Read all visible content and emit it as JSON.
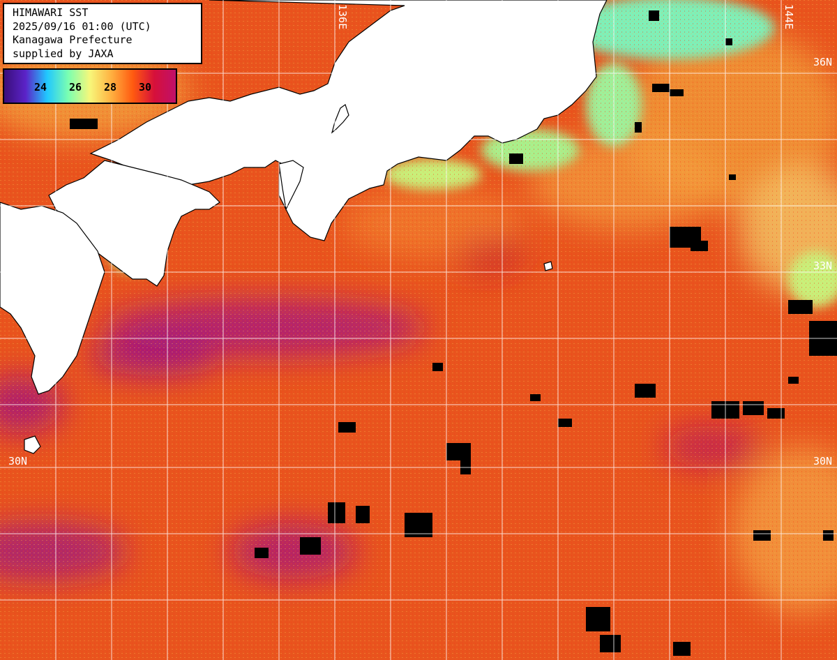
{
  "title_lines": [
    "HIMAWARI SST",
    "2025/09/16 01:00 (UTC)",
    "Kanagawa Prefecture",
    "supplied by JAXA"
  ],
  "colorbar": {
    "ticks": [
      "24",
      "26",
      "28",
      "30"
    ],
    "colors": [
      "#3a0e7a",
      "#5b23c8",
      "#20c8ff",
      "#7cffb0",
      "#f7f77a",
      "#ffb040",
      "#ff5a10",
      "#d6103a",
      "#c0106a"
    ]
  },
  "grid_labels": {
    "longitudes": [
      "136E",
      "144E"
    ],
    "latitudes": [
      "36N",
      "33N",
      "30N"
    ]
  },
  "colors": {
    "land": "#ffffff",
    "ocean_warm": "#e8541e",
    "ocean_hot": "#b8186e",
    "ocean_cool": "#f0b84a",
    "coastal_cool": "#8ef0a8",
    "cloud_mask": "#000000",
    "grid": "#ffffff"
  }
}
